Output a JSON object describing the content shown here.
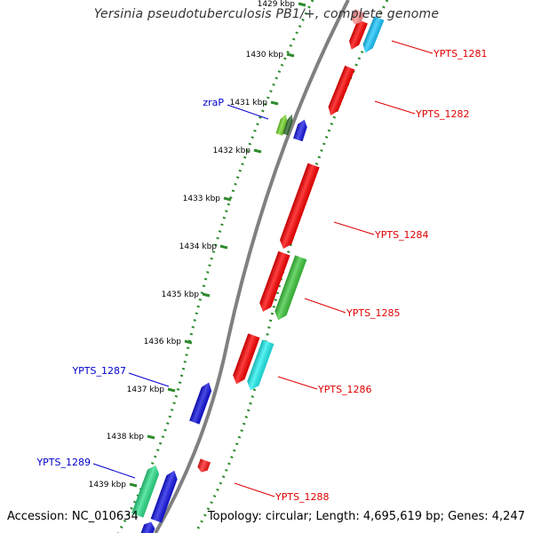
{
  "title": "Yersinia pseudotuberculosis PB1/+, complete genome",
  "footer": {
    "accession": "Accession: NC_010634",
    "summary": "Topology: circular; Length: 4,695,619 bp; Genes: 4,247"
  },
  "colors": {
    "backbone": "#808080",
    "tick_dots": "#2e8b2e",
    "label_red": "#e00000",
    "label_blue": "#0000cc"
  },
  "ticks": [
    {
      "label": "1429 kbp"
    },
    {
      "label": "1430 kbp"
    },
    {
      "label": "1431 kbp"
    },
    {
      "label": "1432 kbp"
    },
    {
      "label": "1433 kbp"
    },
    {
      "label": "1434 kbp"
    },
    {
      "label": "1435 kbp"
    },
    {
      "label": "1436 kbp"
    },
    {
      "label": "1437 kbp"
    },
    {
      "label": "1438 kbp"
    },
    {
      "label": "1439 kbp"
    }
  ],
  "features": [
    {
      "color": "#ff0000",
      "strand": "+"
    },
    {
      "color": "#ff8f8f",
      "strand": "+"
    },
    {
      "color": "#19c8ff",
      "strand": "+"
    },
    {
      "color": "#ff0000",
      "strand": "+"
    },
    {
      "color": "#76d82a",
      "strand": "-"
    },
    {
      "color": "#2f6b2f",
      "strand": "-"
    },
    {
      "color": "#1a1ae6",
      "strand": "-"
    },
    {
      "color": "#ff0000",
      "strand": "+"
    },
    {
      "color": "#ff0000",
      "strand": "+"
    },
    {
      "color": "#3ec93e",
      "strand": "+"
    },
    {
      "color": "#ff0000",
      "strand": "+"
    },
    {
      "color": "#22f0f0",
      "strand": "+"
    },
    {
      "color": "#1010e0",
      "strand": "-"
    },
    {
      "color": "#ff1a1a",
      "strand": "+"
    },
    {
      "color": "#2de08a",
      "strand": "-"
    },
    {
      "color": "#1414e6",
      "strand": "-"
    },
    {
      "color": "#1414e6",
      "strand": "-"
    }
  ],
  "labels": [
    {
      "text": "YPTS_1281",
      "color": "#e00000"
    },
    {
      "text": "YPTS_1282",
      "color": "#e00000"
    },
    {
      "text": "zraP",
      "color": "#0000cc"
    },
    {
      "text": "YPTS_1284",
      "color": "#e00000"
    },
    {
      "text": "YPTS_1285",
      "color": "#e00000"
    },
    {
      "text": "YPTS_1287",
      "color": "#0000cc"
    },
    {
      "text": "YPTS_1286",
      "color": "#e00000"
    },
    {
      "text": "YPTS_1289",
      "color": "#0000cc"
    },
    {
      "text": "YPTS_1288",
      "color": "#e00000"
    }
  ]
}
